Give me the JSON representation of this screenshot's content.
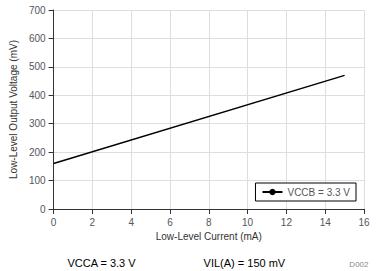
{
  "chart_data": {
    "type": "line",
    "x": [
      0,
      15
    ],
    "series": [
      {
        "name": "VCCB = 3.3 V",
        "color": "#000000",
        "values": [
          160,
          470
        ]
      }
    ],
    "xlabel": "Low-Level Current (mA)",
    "ylabel": "Low-Level Output Voltage (mV)",
    "xlim": [
      0,
      16
    ],
    "ylim": [
      0,
      700
    ],
    "xticks": [
      0,
      2,
      4,
      6,
      8,
      10,
      12,
      14,
      16
    ],
    "yticks": [
      0,
      100,
      200,
      300,
      400,
      500,
      600,
      700
    ],
    "grid": true,
    "legend": "lower right",
    "annotations": [
      "VCCA = 3.3 V",
      "VIL(A) = 150 mV",
      "D002"
    ]
  }
}
